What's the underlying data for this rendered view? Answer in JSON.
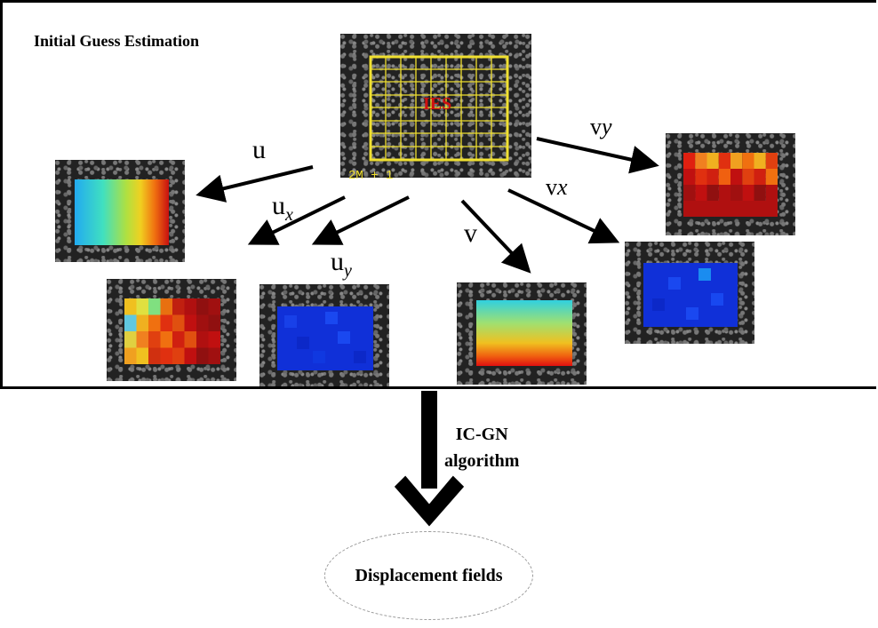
{
  "diagram": {
    "title": "Initial Guess Estimation",
    "center_label": "IES",
    "subset_size_label": "2M + 1",
    "arrow_labels": {
      "u": "u",
      "ux_base": "u",
      "ux_sub": "x",
      "uy_base": "u",
      "uy_sub": "y",
      "v": "v",
      "vx_base": "v",
      "vx_sub": "x",
      "vy_base": "v",
      "vy_sub": "y"
    },
    "algorithm_label_line1": "IC-GN",
    "algorithm_label_line2": "algorithm",
    "output_label": "Displacement fields"
  },
  "colors": {
    "grid": "#f0e030",
    "ies_text": "#d01010",
    "arrow": "#000000"
  }
}
